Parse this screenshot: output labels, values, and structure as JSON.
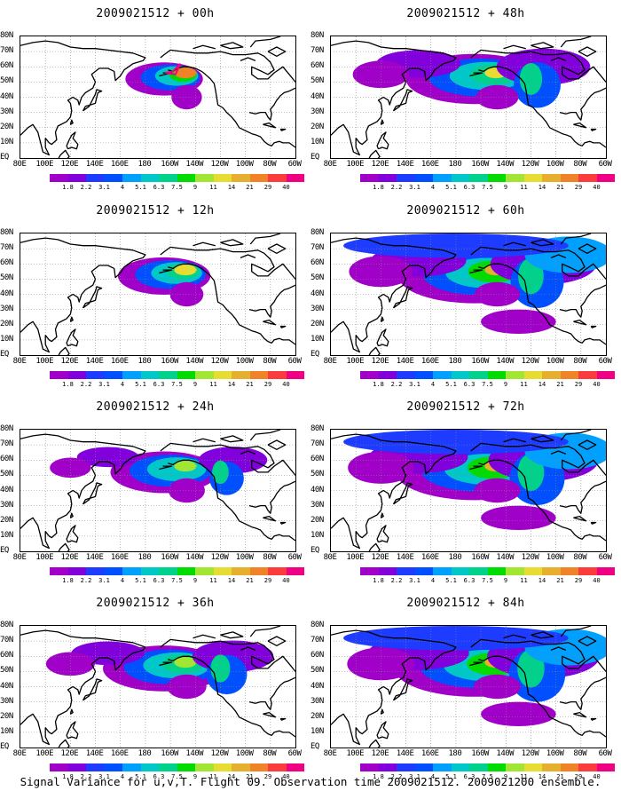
{
  "panels": [
    {
      "title": "2009021512 + 00h",
      "lead_hours": 0,
      "coverage": 0.35,
      "peak": 0.8
    },
    {
      "title": "2009021512 + 48h",
      "lead_hours": 48,
      "coverage": 0.75,
      "peak": 0.7
    },
    {
      "title": "2009021512 + 12h",
      "lead_hours": 12,
      "coverage": 0.45,
      "peak": 0.65
    },
    {
      "title": "2009021512 + 60h",
      "lead_hours": 60,
      "coverage": 0.85,
      "peak": 0.72
    },
    {
      "title": "2009021512 + 24h",
      "lead_hours": 24,
      "coverage": 0.55,
      "peak": 0.6
    },
    {
      "title": "2009021512 + 72h",
      "lead_hours": 72,
      "coverage": 0.88,
      "peak": 0.75
    },
    {
      "title": "2009021512 + 36h",
      "lead_hours": 36,
      "coverage": 0.65,
      "peak": 0.62
    },
    {
      "title": "2009021512 + 84h",
      "lead_hours": 84,
      "coverage": 0.9,
      "peak": 0.78
    }
  ],
  "lat_labels": [
    "80N",
    "70N",
    "60N",
    "50N",
    "40N",
    "30N",
    "20N",
    "10N",
    "EQ"
  ],
  "lon_labels": [
    "80E",
    "100E",
    "120E",
    "140E",
    "160E",
    "180",
    "160W",
    "140W",
    "120W",
    "100W",
    "80W",
    "60W"
  ],
  "colorbar": {
    "levels": [
      "1.8",
      "2.2",
      "3.1",
      "4",
      "5.1",
      "6.3",
      "7.5",
      "9",
      "11",
      "14",
      "21",
      "29",
      "40"
    ],
    "colors": [
      "#a000c8",
      "#8200dc",
      "#1e3cff",
      "#0050ff",
      "#00a0ff",
      "#00c8c8",
      "#00d28c",
      "#00dc00",
      "#a0e632",
      "#e6dc32",
      "#e6af2d",
      "#f08228",
      "#fa3c3c",
      "#f00082"
    ]
  },
  "caption": "Signal Variance for u,v,T. Flight 09. Observation time 2009021512. 2009021200 ensemble."
}
